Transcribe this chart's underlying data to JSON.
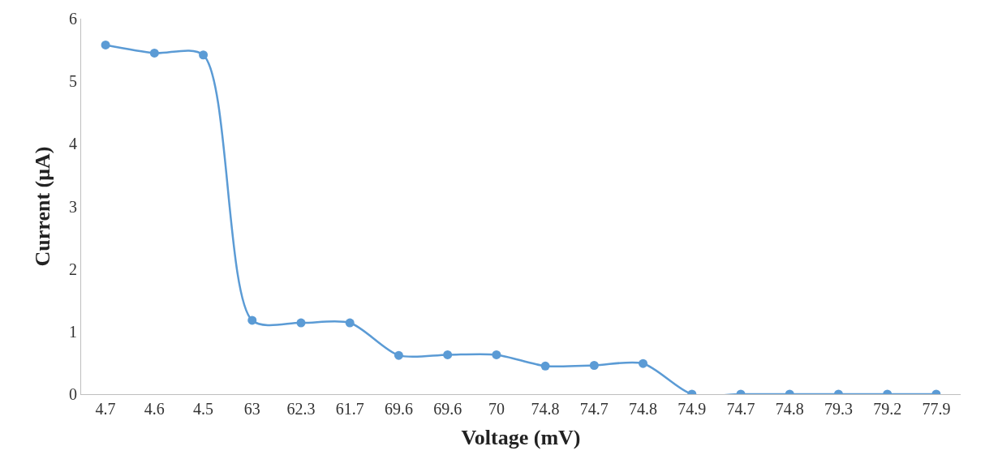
{
  "chart_data": {
    "type": "line",
    "xlabel": "Voltage (mV)",
    "ylabel": "Current (μA)",
    "categories": [
      "4.7",
      "4.6",
      "4.5",
      "63",
      "62.3",
      "61.7",
      "69.6",
      "69.6",
      "70",
      "74.8",
      "74.7",
      "74.8",
      "74.9",
      "74.7",
      "74.8",
      "79.3",
      "79.2",
      "77.9"
    ],
    "series": [
      {
        "color": "#5b9bd5",
        "values": [
          5.58,
          5.45,
          5.42,
          1.18,
          1.14,
          1.14,
          0.62,
          0.63,
          0.63,
          0.45,
          0.46,
          0.49,
          0,
          0,
          0,
          0,
          0,
          0
        ]
      }
    ],
    "ylim": [
      0,
      6
    ],
    "yticks": [
      0,
      1,
      2,
      3,
      4,
      5,
      6
    ],
    "marker": "circle",
    "line_style": "solid"
  }
}
